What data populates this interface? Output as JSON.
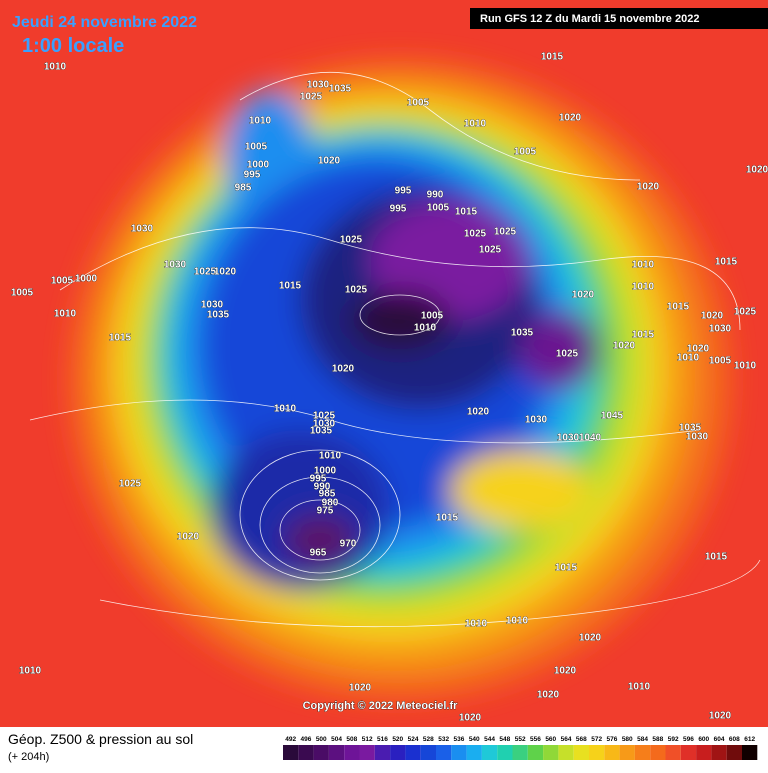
{
  "header": {
    "date": "Jeudi 24 novembre 2022",
    "time": "1:00 locale",
    "run": "Run GFS 12 Z du Mardi 15 novembre 2022"
  },
  "footer": {
    "title": "Géop. Z500 & pression au sol",
    "lead": "(+ 204h)",
    "copyright": "Copyright © 2022 Meteociel.fr"
  },
  "legend": {
    "values": [
      492,
      496,
      500,
      504,
      508,
      512,
      516,
      520,
      524,
      528,
      532,
      536,
      540,
      544,
      548,
      552,
      556,
      560,
      564,
      568,
      572,
      576,
      580,
      584,
      588,
      592,
      596,
      600,
      604,
      608,
      612
    ]
  },
  "map": {
    "pressure_labels": [
      "1010",
      "1015",
      "1030",
      "1035",
      "1025",
      "1005",
      "1010",
      "1005",
      "1000",
      "995",
      "985",
      "1020",
      "1010",
      "1020",
      "1005",
      "1020",
      "1020",
      "995",
      "990",
      "995",
      "1005",
      "1015",
      "1030",
      "1025",
      "1025",
      "1025",
      "1025",
      "1030",
      "1025",
      "1020",
      "1005",
      "1000",
      "1005",
      "1015",
      "1025",
      "1010",
      "1015",
      "1020",
      "1010",
      "1030",
      "1035",
      "1010",
      "1005",
      "1010",
      "1015",
      "1035",
      "1015",
      "1020",
      "1025",
      "1020",
      "1010",
      "1025",
      "1030",
      "1035",
      "1020",
      "1030",
      "1045",
      "1030",
      "1040",
      "1035",
      "1030",
      "1010",
      "1000",
      "995",
      "990",
      "985",
      "980",
      "975",
      "1025",
      "1015",
      "1020",
      "970",
      "965",
      "1015",
      "1015",
      "1010",
      "1010",
      "1020",
      "1010",
      "1020",
      "1010",
      "1020",
      "1020",
      "1020",
      "1020",
      "1015",
      "1020",
      "1025",
      "1030",
      "1020",
      "1010",
      "1005",
      "1010"
    ]
  }
}
